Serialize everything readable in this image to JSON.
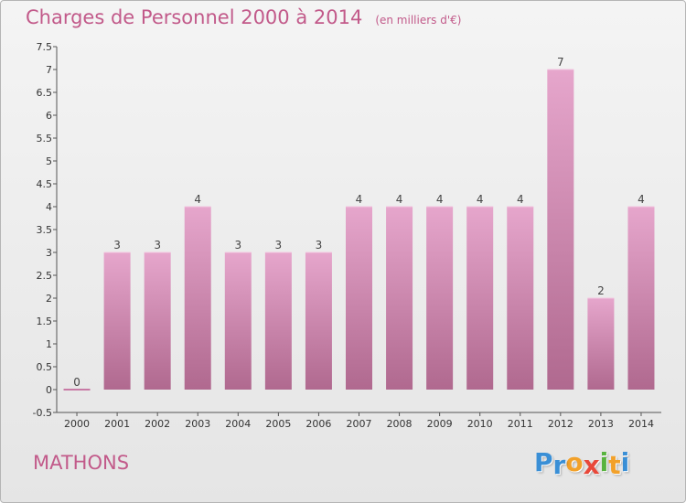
{
  "header": {
    "title": "Charges de Personnel 2000 à 2014",
    "subtitle": "(en milliers d'€)"
  },
  "footer": {
    "commune": "MATHONS",
    "logo": [
      "P",
      "r",
      "o",
      "x",
      "i",
      "t",
      "i"
    ]
  },
  "colors": {
    "bar_light": "#e6a6cc",
    "bar_dark": "#b0698f",
    "title": "#c25a8a",
    "logo": [
      "#3a8fd6",
      "#3a8fd6",
      "#f2a12a",
      "#e8483a",
      "#58b33f",
      "#f2a12a",
      "#3a8fd6"
    ]
  },
  "chart_data": {
    "type": "bar",
    "title": "Charges de Personnel 2000 à 2014",
    "subtitle": "(en milliers d'€)",
    "categories": [
      "2000",
      "2001",
      "2002",
      "2003",
      "2004",
      "2005",
      "2006",
      "2007",
      "2008",
      "2009",
      "2010",
      "2011",
      "2012",
      "2013",
      "2014"
    ],
    "values": [
      0,
      3,
      3,
      4,
      3,
      3,
      3,
      4,
      4,
      4,
      4,
      4,
      7,
      2,
      4
    ],
    "value_labels": [
      "0",
      "3",
      "3",
      "4",
      "3",
      "3",
      "3",
      "4",
      "4",
      "4",
      "4",
      "4",
      "7",
      "2",
      "4"
    ],
    "yticks": [
      "-0.5",
      "0",
      "0.5",
      "1",
      "1.5",
      "2",
      "2.5",
      "3",
      "3.5",
      "4",
      "4.5",
      "5",
      "5.5",
      "6",
      "6.5",
      "7",
      "7.5"
    ],
    "ylim": [
      -0.5,
      7.5
    ],
    "grid": false,
    "legend": "none"
  }
}
